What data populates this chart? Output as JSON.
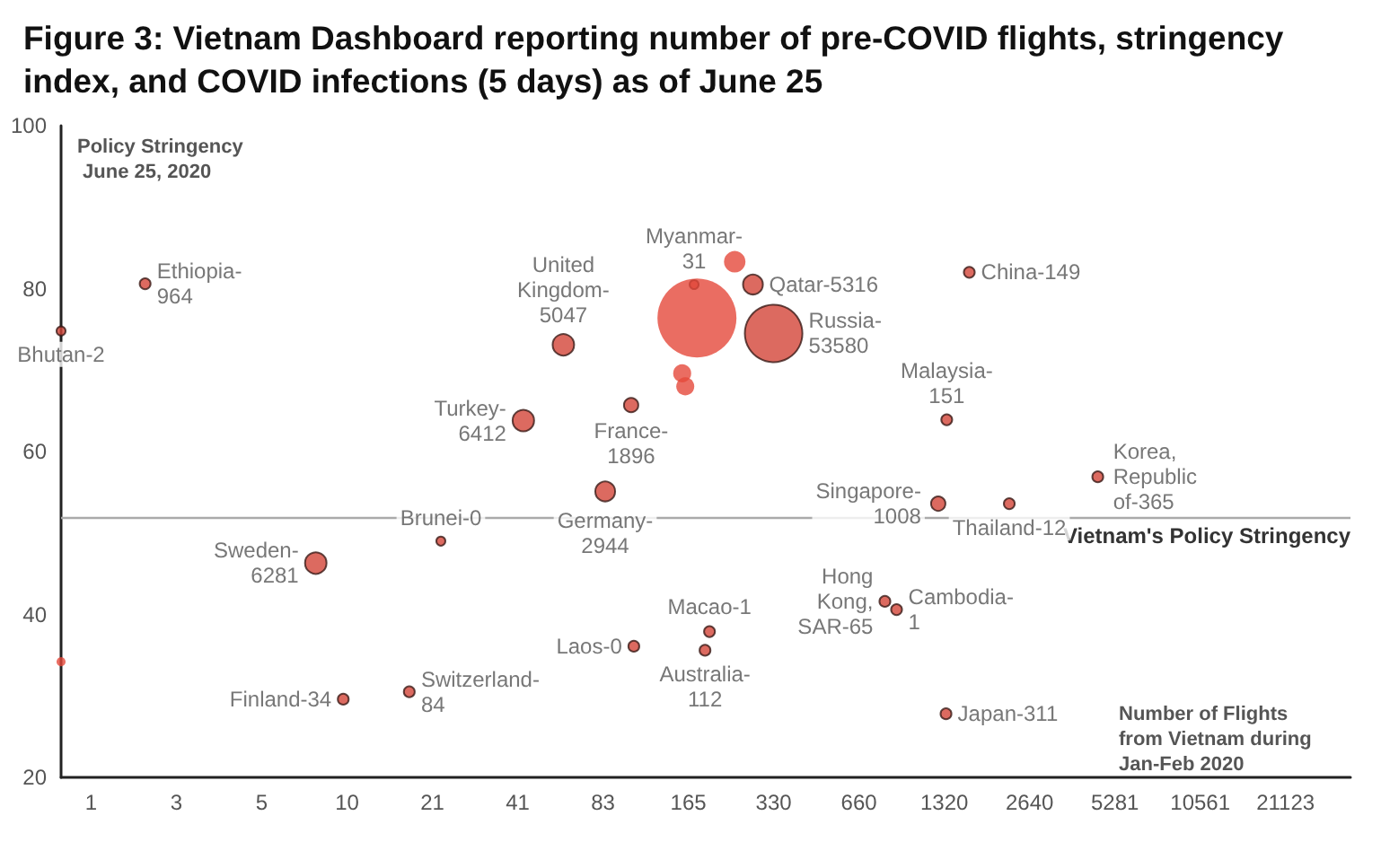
{
  "chart_data": {
    "type": "bubble",
    "title": "Figure 3: Vietnam Dashboard reporting number of pre-COVID flights, stringency index, and COVID infections (5 days) as of June 25",
    "xlabel": "Number of Flights from Vietnam during Jan-Feb 2020",
    "ylabel": "Policy Stringency June 25, 2020",
    "log": "x",
    "xlim": [
      1.01,
      35800
    ],
    "xticks": [
      {
        "value": 1.289,
        "label": "1"
      },
      {
        "value": 2.579,
        "label": "3"
      },
      {
        "value": 5.158,
        "label": "5"
      },
      {
        "value": 10.316,
        "label": "10"
      },
      {
        "value": 20.63,
        "label": "21"
      },
      {
        "value": 41.26,
        "label": "41"
      },
      {
        "value": 82.52,
        "label": "83"
      },
      {
        "value": 165.03,
        "label": "165"
      },
      {
        "value": 330.06,
        "label": "330"
      },
      {
        "value": 660.12,
        "label": "660"
      },
      {
        "value": 1320.24,
        "label": "1320"
      },
      {
        "value": 2640.5,
        "label": "2640"
      },
      5281,
      10561,
      21123
    ],
    "ylim": [
      20,
      100
    ],
    "yticks": [
      20,
      40,
      60,
      80,
      100
    ],
    "grid": false,
    "ref_lines": [
      {
        "axis": "y",
        "value": 51.9,
        "label": "Vietnam's Policy Stringency",
        "color": "#aaaaaa"
      }
    ],
    "series": [
      {
        "x": [
          1.01,
          2.0,
          59.8,
          43.2,
          103.7,
          173,
          279,
          330,
          1618,
          1347,
          84,
          22.1,
          8.0,
          106,
          10.0,
          17.1,
          196,
          189,
          815,
          896,
          1339,
          1257,
          2239,
          4595,
          1.01,
          177,
          157,
          161,
          240.6
        ],
        "values": [
          74.8,
          80.6,
          73.1,
          63.8,
          65.7,
          80.5,
          80.5,
          74.5,
          82.0,
          63.9,
          55.1,
          49.0,
          46.3,
          36.1,
          29.6,
          30.5,
          37.9,
          35.6,
          41.6,
          40.6,
          27.8,
          53.6,
          53.6,
          56.9,
          34.2,
          76.4,
          69.6,
          68.0,
          83.3
        ],
        "sizes": [
          0.013,
          0.019,
          0.074,
          0.074,
          0.033,
          0.013,
          0.063,
          0.53,
          0.019,
          0.019,
          0.063,
          0.013,
          0.074,
          0.019,
          0.019,
          0.019,
          0.019,
          0.019,
          0.019,
          0.019,
          0.019,
          0.033,
          0.019,
          0.019,
          0.013,
          1,
          0.052,
          0.052,
          0.074
        ],
        "value_labels": [
          "Bhutan-2",
          "Ethiopia-964",
          "United Kingdom-5047",
          "Turkey-6412",
          "France-1896",
          "Myanmar-31",
          "Qatar-5316",
          "Russia-53580",
          "China-149",
          "Malaysia-151",
          "Germany-2944",
          "Brunei-0",
          "Sweden-6281",
          "Laos-0",
          "Finland-34",
          "Switzerland-84",
          "Macao-1",
          "Australia-112",
          "Hong Kong, SAR-65",
          "Cambodia-1",
          "Japan-311",
          "Singapore-1008",
          "Thailand-12",
          "Korea, Republic of-365",
          null,
          null,
          null,
          null,
          null
        ],
        "colors": [
          "#d34538",
          "#d34538",
          "#d34538",
          "#d34538",
          "#d34538",
          "#d34538",
          "#d34538",
          "#d34538",
          "#d34538",
          "#d34538",
          "#d34538",
          "#d34538",
          "#d34538",
          "#d34538",
          "#d34538",
          "#d34538",
          "#d34538",
          "#d34538",
          "#d34538",
          "#d34538",
          "#d34538",
          "#d34538",
          "#d34538",
          "#d34538",
          "#e5493b",
          "#e5493b",
          "#e5493b",
          "#e5493b",
          "#e5493b"
        ]
      }
    ]
  }
}
